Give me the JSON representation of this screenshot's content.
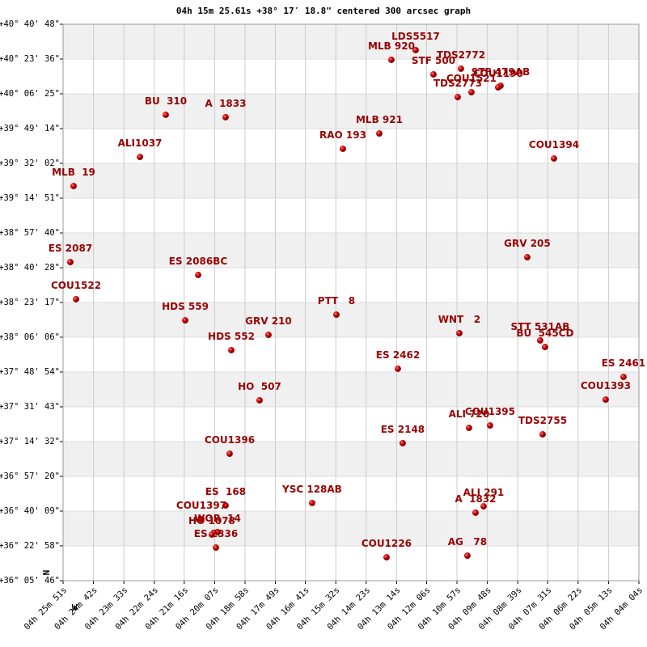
{
  "chart_data": {
    "type": "scatter",
    "title": "04h 15m 25.61s +38° 17′ 18.8\" centered 300 arcsec graph",
    "north_label": "N",
    "west_label": "W",
    "color": "#cc0000",
    "label_color": "#990000",
    "grid": true,
    "xlim": [
      15951,
      14644
    ],
    "ylim": [
      36.0961,
      40.68
    ],
    "xticks": [
      {
        "value": 15951,
        "label": "04h 25m 51s"
      },
      {
        "value": 15882,
        "label": "04h 24m 42s"
      },
      {
        "value": 15813,
        "label": "04h 23m 33s"
      },
      {
        "value": 15744,
        "label": "04h 22m 24s"
      },
      {
        "value": 15676,
        "label": "04h 21m 16s"
      },
      {
        "value": 15607,
        "label": "04h 20m 07s"
      },
      {
        "value": 15538,
        "label": "04h 18m 58s"
      },
      {
        "value": 15469,
        "label": "04h 17m 49s"
      },
      {
        "value": 15401,
        "label": "04h 16m 41s"
      },
      {
        "value": 15332,
        "label": "04h 15m 32s"
      },
      {
        "value": 15263,
        "label": "04h 14m 23s"
      },
      {
        "value": 15194,
        "label": "04h 13m 14s"
      },
      {
        "value": 15126,
        "label": "04h 12m 06s"
      },
      {
        "value": 15057,
        "label": "04h 10m 57s"
      },
      {
        "value": 14988,
        "label": "04h 09m 48s"
      },
      {
        "value": 14919,
        "label": "04h 08m 39s"
      },
      {
        "value": 14851,
        "label": "04h 07m 31s"
      },
      {
        "value": 14782,
        "label": "04h 06m 22s"
      },
      {
        "value": 14713,
        "label": "04h 05m 13s"
      },
      {
        "value": 14644,
        "label": "04h 04m 04s"
      }
    ],
    "yticks": [
      {
        "value": 40.68,
        "label": "+40° 40' 48\""
      },
      {
        "value": 40.3933,
        "label": "+40° 23' 36\""
      },
      {
        "value": 40.1069,
        "label": "+40° 06' 25\""
      },
      {
        "value": 39.8206,
        "label": "+39° 49' 14\""
      },
      {
        "value": 39.5339,
        "label": "+39° 32' 02\""
      },
      {
        "value": 39.2475,
        "label": "+39° 14' 51\""
      },
      {
        "value": 38.9611,
        "label": "+38° 57' 40\""
      },
      {
        "value": 38.6744,
        "label": "+38° 40' 28\""
      },
      {
        "value": 38.3881,
        "label": "+38° 23' 17\""
      },
      {
        "value": 38.1017,
        "label": "+38° 06' 06\""
      },
      {
        "value": 37.815,
        "label": "+37° 48' 54\""
      },
      {
        "value": 37.5286,
        "label": "+37° 31' 43\""
      },
      {
        "value": 37.2422,
        "label": "+37° 14' 32\""
      },
      {
        "value": 36.9556,
        "label": "+36° 57' 20\""
      },
      {
        "value": 36.6692,
        "label": "+36° 40' 09\""
      },
      {
        "value": 36.3828,
        "label": "+36° 22' 58\""
      },
      {
        "value": 36.0961,
        "label": "+36° 05' 46\""
      }
    ],
    "labels": [
      "LDS5517",
      "MLB 920",
      "STF 500",
      "TDS2772",
      "COU1521",
      "TDS2773",
      "STF 479AB",
      "COU1190",
      "BU  310",
      "A  1833",
      "MLB 921",
      "RAO 193",
      "ALI1037",
      "COU1394",
      "MLB  19",
      "GRV 205",
      "ES 2087",
      "ES 2086BC",
      "COU1522",
      "PTT   8",
      "HDS 559",
      "WNT   2",
      "GRV 210",
      "STT 531AB",
      "BU  545CD",
      "HDS 552",
      "ES 2462",
      "ES 2461",
      "COU1393",
      "HO  507",
      "ALI 720",
      "COU1395",
      "TDS2755",
      "ES 2148",
      "COU1396",
      "ES  168",
      "YSC 128AB",
      "ALI 291",
      "A  1832",
      "COU1397",
      "WOR  14",
      "HO 1078",
      "ES 2336",
      "COU1226",
      "AG   78"
    ],
    "x": [
      15150.7,
      15205.8,
      15110.3,
      15047.9,
      15024.1,
      15055.3,
      14958.0,
      14963.5,
      15717.9,
      15582.1,
      15233.3,
      15315.9,
      15776.6,
      14836.8,
      15927.1,
      14897.4,
      15934.5,
      15644.5,
      15921.6,
      15330.6,
      15673.8,
      15051.6,
      15484.8,
      14868.1,
      14857.1,
      15569.2,
      15191.1,
      14679.0,
      14719.4,
      15505.0,
      15029.6,
      14981.9,
      14862.5,
      15180.1,
      15572.9,
      15582.1,
      15385.7,
      14996.5,
      15014.8,
      15637.1,
      15600.4,
      15613.3,
      15604.1,
      15216.8,
      15033.3
    ],
    "values": [
      40.467,
      40.387,
      40.267,
      40.314,
      40.12,
      40.08,
      40.173,
      40.16,
      39.934,
      39.914,
      39.78,
      39.654,
      39.587,
      39.574,
      39.347,
      38.761,
      38.721,
      38.615,
      38.415,
      38.288,
      38.241,
      38.135,
      38.121,
      38.075,
      38.021,
      37.995,
      37.842,
      37.775,
      37.588,
      37.582,
      37.355,
      37.375,
      37.302,
      37.229,
      37.142,
      36.716,
      36.736,
      36.709,
      36.656,
      36.602,
      36.496,
      36.476,
      36.369,
      36.289,
      36.302
    ]
  }
}
